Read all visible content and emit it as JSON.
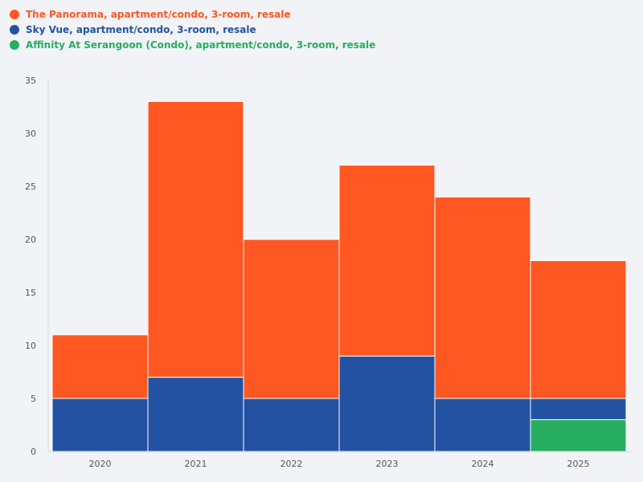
{
  "chart_data": {
    "type": "bar",
    "stacked": true,
    "categories": [
      "2020",
      "2021",
      "2022",
      "2023",
      "2024",
      "2025"
    ],
    "series": [
      {
        "name": "Affinity At Serangoon (Condo), apartment/condo, 3-room, resale",
        "color": "#27ae60",
        "values": [
          0,
          0,
          0,
          0,
          0,
          3
        ]
      },
      {
        "name": "Sky Vue, apartment/condo, 3-room, resale",
        "color": "#2352a3",
        "values": [
          5,
          7,
          5,
          9,
          5,
          2
        ]
      },
      {
        "name": "The Panorama, apartment/condo, 3-room, resale",
        "color": "#ff5722",
        "values": [
          6,
          26,
          15,
          18,
          19,
          13
        ]
      }
    ],
    "legend_order": [
      "The Panorama, apartment/condo, 3-room, resale",
      "Sky Vue, apartment/condo, 3-room, resale",
      "Affinity At Serangoon (Condo), apartment/condo, 3-room, resale"
    ],
    "yticks": [
      "0",
      "5",
      "10",
      "15",
      "20",
      "25",
      "30",
      "35"
    ],
    "ylim": [
      0,
      35
    ],
    "title": "",
    "xlabel": "",
    "ylabel": "",
    "legend_position": "top-left",
    "grid": false
  }
}
